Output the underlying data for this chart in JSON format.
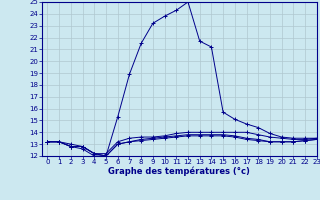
{
  "xlabel": "Graphe des températures (°c)",
  "xlim": [
    -0.5,
    23
  ],
  "ylim": [
    12,
    25
  ],
  "xticks": [
    0,
    1,
    2,
    3,
    4,
    5,
    6,
    7,
    8,
    9,
    10,
    11,
    12,
    13,
    14,
    15,
    16,
    17,
    18,
    19,
    20,
    21,
    22,
    23
  ],
  "yticks": [
    12,
    13,
    14,
    15,
    16,
    17,
    18,
    19,
    20,
    21,
    22,
    23,
    24,
    25
  ],
  "bg_color": "#cce8f0",
  "grid_color": "#b0c8d0",
  "line_color": "#00008b",
  "line1_x": [
    0,
    1,
    2,
    3,
    4,
    5,
    6,
    7,
    8,
    9,
    10,
    11,
    12,
    13,
    14,
    15,
    16,
    17,
    18,
    19,
    20,
    21,
    22,
    23
  ],
  "line1_y": [
    13.2,
    13.2,
    12.8,
    12.8,
    12.2,
    12.0,
    15.3,
    18.9,
    21.5,
    23.2,
    23.8,
    24.3,
    25.0,
    21.7,
    21.2,
    15.7,
    15.1,
    14.7,
    14.4,
    13.9,
    13.6,
    13.5,
    13.5,
    13.5
  ],
  "line2_x": [
    0,
    1,
    2,
    3,
    4,
    5,
    6,
    7,
    8,
    9,
    10,
    11,
    12,
    13,
    14,
    15,
    16,
    17,
    18,
    19,
    20,
    21,
    22,
    23
  ],
  "line2_y": [
    13.2,
    13.2,
    12.8,
    12.8,
    12.2,
    12.2,
    13.2,
    13.5,
    13.6,
    13.6,
    13.7,
    13.9,
    14.0,
    14.0,
    14.0,
    14.0,
    14.0,
    14.0,
    13.8,
    13.6,
    13.5,
    13.4,
    13.4,
    13.5
  ],
  "line3_x": [
    0,
    1,
    2,
    3,
    4,
    5,
    6,
    7,
    8,
    9,
    10,
    11,
    12,
    13,
    14,
    15,
    16,
    17,
    18,
    19,
    20,
    21,
    22,
    23
  ],
  "line3_y": [
    13.2,
    13.2,
    12.8,
    12.6,
    12.0,
    12.0,
    13.0,
    13.2,
    13.4,
    13.5,
    13.6,
    13.7,
    13.8,
    13.8,
    13.8,
    13.8,
    13.7,
    13.5,
    13.4,
    13.2,
    13.2,
    13.2,
    13.3,
    13.4
  ],
  "line4_x": [
    0,
    1,
    2,
    3,
    4,
    5,
    6,
    7,
    8,
    9,
    10,
    11,
    12,
    13,
    14,
    15,
    16,
    17,
    18,
    19,
    20,
    21,
    22,
    23
  ],
  "line4_y": [
    13.2,
    13.2,
    13.0,
    12.8,
    12.2,
    12.0,
    13.0,
    13.2,
    13.3,
    13.4,
    13.5,
    13.6,
    13.7,
    13.7,
    13.7,
    13.7,
    13.6,
    13.4,
    13.3,
    13.2,
    13.2,
    13.2,
    13.3,
    13.4
  ],
  "tick_fontsize": 5.0,
  "xlabel_fontsize": 6.0
}
